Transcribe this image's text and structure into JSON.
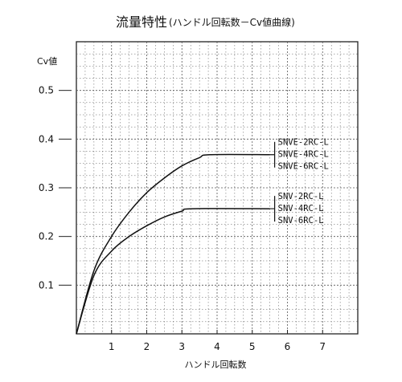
{
  "chart_data": {
    "type": "line",
    "title": "流量特性",
    "subtitle": "(ハンドル回転数－Cv値曲線)",
    "xlabel": "ハンドル回転数",
    "ylabel": "Cv値",
    "xlim": [
      0,
      8
    ],
    "ylim": [
      0,
      0.6
    ],
    "x_ticks": [
      "1",
      "2",
      "3",
      "4",
      "5",
      "6",
      "7"
    ],
    "y_ticks": [
      "0.1",
      "0.2",
      "0.3",
      "0.4",
      "0.5"
    ],
    "grid": true,
    "series": [
      {
        "labels": [
          "SNVE-2RC-L",
          "SNVE-4RC-L",
          "SNVE-6RC-L"
        ],
        "points": [
          [
            0,
            0
          ],
          [
            0.5,
            0.13
          ],
          [
            1,
            0.2
          ],
          [
            1.5,
            0.25
          ],
          [
            2,
            0.29
          ],
          [
            2.5,
            0.32
          ],
          [
            3,
            0.345
          ],
          [
            3.5,
            0.362
          ],
          [
            3.8,
            0.368
          ],
          [
            5.5,
            0.368
          ]
        ]
      },
      {
        "labels": [
          "SNV-2RC-L",
          "SNV-4RC-L",
          "SNV-6RC-L"
        ],
        "points": [
          [
            0,
            0
          ],
          [
            0.5,
            0.12
          ],
          [
            1,
            0.17
          ],
          [
            1.5,
            0.2
          ],
          [
            2,
            0.222
          ],
          [
            2.5,
            0.24
          ],
          [
            3,
            0.252
          ],
          [
            3.3,
            0.257
          ],
          [
            5.5,
            0.257
          ]
        ]
      }
    ]
  }
}
